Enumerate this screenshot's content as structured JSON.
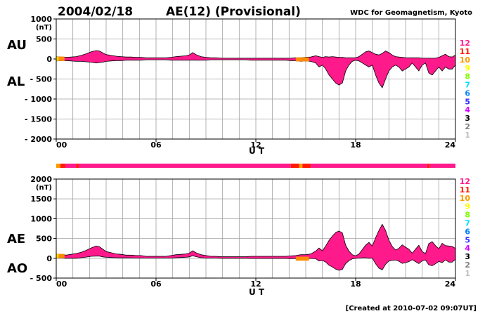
{
  "header": {
    "date": "2004/02/18",
    "title": "AE(12) (Provisional)",
    "source": "WDC for Geomagnetism, Kyoto"
  },
  "footer": {
    "created": "[Created at 2010-07-02 09:07UT]"
  },
  "colors": {
    "fill_main": "#ff1a8c",
    "fill_11": "#ff2a1a",
    "fill_10": "#ff8c00",
    "fill_9": "#ffd800",
    "outline": "#000000",
    "grid": "#a0a0a0"
  },
  "station_scale": [
    {
      "label": "12",
      "color": "#ff1a8c"
    },
    {
      "label": "11",
      "color": "#ff1a00"
    },
    {
      "label": "10",
      "color": "#ff9900"
    },
    {
      "label": "9",
      "color": "#ffff00"
    },
    {
      "label": "8",
      "color": "#80ff00"
    },
    {
      "label": "7",
      "color": "#00e0ff"
    },
    {
      "label": "6",
      "color": "#0080ff"
    },
    {
      "label": "5",
      "color": "#3030ff"
    },
    {
      "label": "4",
      "color": "#d000ff"
    },
    {
      "label": "3",
      "color": "#000000"
    },
    {
      "label": "2",
      "color": "#808080"
    },
    {
      "label": "1",
      "color": "#c0c0c0"
    }
  ],
  "chart_data": [
    {
      "type": "area",
      "series": [
        {
          "name": "AU"
        },
        {
          "name": "AL"
        }
      ],
      "left_labels": [
        "AU",
        "AL"
      ],
      "unit_label": "(nT)",
      "ylim": [
        -2000,
        1000
      ],
      "yticks": [
        1000,
        500,
        0,
        -500,
        -1000,
        -1500,
        -2000
      ],
      "ytick_labels": [
        "1000",
        "500",
        "0",
        "- 500",
        "- 1000",
        "- 1500",
        "- 2000"
      ],
      "xlim": [
        0,
        24
      ],
      "xticks": [
        0,
        6,
        12,
        18,
        24
      ],
      "xtick_labels": [
        "00",
        "06",
        "12",
        "18",
        "24"
      ],
      "xlabel": "U T",
      "x_hours": [
        0,
        0.3,
        0.6,
        0.9,
        1.2,
        1.5,
        1.8,
        2.1,
        2.4,
        2.6,
        2.8,
        3.0,
        3.3,
        3.6,
        3.9,
        4.2,
        4.5,
        4.8,
        5.1,
        5.4,
        5.7,
        6.0,
        6.3,
        6.6,
        6.9,
        7.2,
        7.5,
        7.8,
        8.0,
        8.2,
        8.4,
        8.7,
        9.0,
        9.3,
        9.6,
        9.9,
        10.2,
        10.5,
        10.8,
        11.1,
        11.4,
        11.7,
        12.0,
        12.3,
        12.6,
        12.9,
        13.2,
        13.5,
        13.8,
        14.1,
        14.4,
        14.7,
        15.0,
        15.3,
        15.6,
        15.8,
        16.0,
        16.2,
        16.4,
        16.6,
        16.8,
        17.0,
        17.2,
        17.4,
        17.6,
        17.8,
        18.0,
        18.2,
        18.4,
        18.6,
        18.8,
        19.0,
        19.2,
        19.4,
        19.6,
        19.8,
        20.0,
        20.2,
        20.4,
        20.6,
        20.8,
        21.0,
        21.2,
        21.4,
        21.6,
        21.8,
        22.0,
        22.2,
        22.4,
        22.6,
        22.8,
        23.0,
        23.2,
        23.4,
        23.6,
        23.8,
        24.0
      ],
      "au": [
        60,
        50,
        40,
        50,
        60,
        90,
        130,
        180,
        210,
        200,
        150,
        110,
        90,
        70,
        60,
        50,
        50,
        40,
        40,
        30,
        30,
        30,
        30,
        30,
        40,
        60,
        70,
        80,
        100,
        160,
        110,
        60,
        40,
        30,
        30,
        20,
        20,
        20,
        20,
        20,
        20,
        20,
        20,
        20,
        20,
        20,
        20,
        20,
        20,
        20,
        30,
        30,
        40,
        50,
        80,
        60,
        40,
        60,
        50,
        60,
        50,
        40,
        40,
        30,
        30,
        30,
        30,
        60,
        120,
        180,
        200,
        160,
        120,
        100,
        140,
        200,
        160,
        100,
        60,
        50,
        40,
        30,
        30,
        30,
        30,
        30,
        20,
        20,
        20,
        20,
        20,
        40,
        80,
        120,
        60,
        50,
        100
      ],
      "al": [
        -50,
        -40,
        -40,
        -50,
        -60,
        -60,
        -70,
        -80,
        -100,
        -90,
        -80,
        -60,
        -50,
        -40,
        -40,
        -30,
        -30,
        -30,
        -30,
        -20,
        -20,
        -20,
        -20,
        -20,
        -30,
        -30,
        -30,
        -30,
        -30,
        -30,
        -30,
        -30,
        -30,
        -20,
        -20,
        -20,
        -20,
        -20,
        -20,
        -20,
        -20,
        -30,
        -30,
        -30,
        -30,
        -30,
        -30,
        -30,
        -30,
        -40,
        -40,
        -60,
        -50,
        -60,
        -100,
        -200,
        -150,
        -250,
        -400,
        -500,
        -600,
        -650,
        -600,
        -300,
        -150,
        -60,
        -30,
        -50,
        -100,
        -150,
        -200,
        -150,
        -400,
        -600,
        -720,
        -500,
        -300,
        -200,
        -150,
        -200,
        -300,
        -250,
        -200,
        -100,
        -200,
        -300,
        -150,
        -100,
        -350,
        -400,
        -300,
        -200,
        -300,
        -200,
        -250,
        -250,
        -150
      ]
    },
    {
      "type": "area",
      "series": [
        {
          "name": "AE"
        },
        {
          "name": "AO"
        }
      ],
      "left_labels": [
        "AE",
        "AO"
      ],
      "unit_label": "(nT)",
      "ylim": [
        -500,
        2000
      ],
      "yticks": [
        2000,
        1500,
        1000,
        500,
        0,
        -500
      ],
      "ytick_labels": [
        "2000",
        "1500",
        "1000",
        "500",
        "0",
        "- 500"
      ],
      "xlim": [
        0,
        24
      ],
      "xticks": [
        0,
        6,
        12,
        18,
        24
      ],
      "xtick_labels": [
        "00",
        "06",
        "12",
        "18",
        "24"
      ],
      "xlabel": "U T"
    }
  ],
  "station_bar": [
    {
      "from": 0,
      "to": 0.25,
      "level": "10"
    },
    {
      "from": 0.25,
      "to": 0.55,
      "level": "11"
    },
    {
      "from": 0.55,
      "to": 1.2,
      "level": "12"
    },
    {
      "from": 1.2,
      "to": 1.35,
      "level": "11"
    },
    {
      "from": 1.35,
      "to": 14.1,
      "level": "12"
    },
    {
      "from": 14.1,
      "to": 14.6,
      "level": "11"
    },
    {
      "from": 14.6,
      "to": 14.8,
      "level": "10"
    },
    {
      "from": 14.8,
      "to": 15.3,
      "level": "11"
    },
    {
      "from": 15.3,
      "to": 22.3,
      "level": "12"
    },
    {
      "from": 22.3,
      "to": 22.45,
      "level": "11"
    },
    {
      "from": 22.45,
      "to": 24,
      "level": "12"
    }
  ]
}
